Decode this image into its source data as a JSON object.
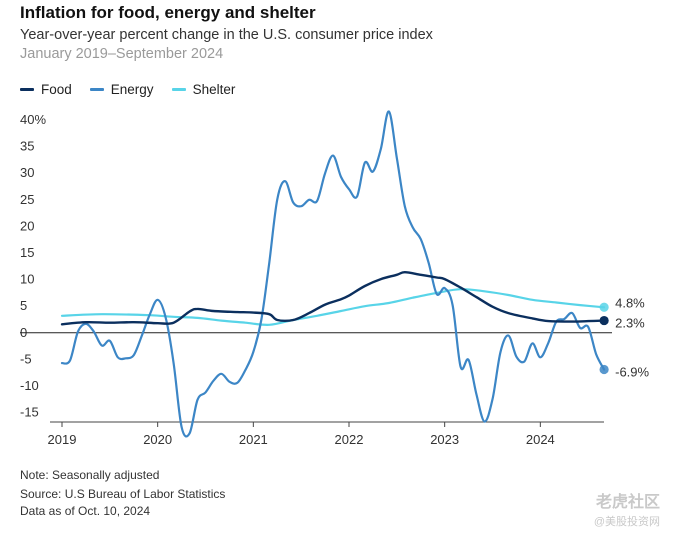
{
  "header": {
    "title": "Inflation for food, energy and shelter",
    "subtitle": "Year-over-year percent change in the U.S. consumer price index",
    "date_range": "January 2019–September 2024"
  },
  "legend": [
    {
      "label": "Food",
      "color": "#0b2f5e"
    },
    {
      "label": "Energy",
      "color": "#3c86c6"
    },
    {
      "label": "Shelter",
      "color": "#58d4e8"
    }
  ],
  "footer": {
    "note": "Note: Seasonally adjusted",
    "source": "Source: U.S Bureau of Labor Statistics",
    "data_as_of": "Data as of Oct. 10, 2024"
  },
  "watermark": {
    "line1": "老虎社区",
    "line2": "@美股投资网"
  },
  "chart_data": {
    "type": "line",
    "title": "Inflation for food, energy and shelter",
    "ylim": [
      -17,
      42
    ],
    "y_ticks": [
      {
        "value": 40,
        "label": "40%"
      },
      {
        "value": 35,
        "label": "35"
      },
      {
        "value": 30,
        "label": "30"
      },
      {
        "value": 25,
        "label": "25"
      },
      {
        "value": 20,
        "label": "20"
      },
      {
        "value": 15,
        "label": "15"
      },
      {
        "value": 10,
        "label": "10"
      },
      {
        "value": 5,
        "label": "5"
      },
      {
        "value": 0,
        "label": "0"
      },
      {
        "value": -5,
        "label": "-5"
      },
      {
        "value": -10,
        "label": "-10"
      },
      {
        "value": -15,
        "label": "-15"
      }
    ],
    "x_ticks": [
      "2019",
      "2020",
      "2021",
      "2022",
      "2023",
      "2024"
    ],
    "grid": false,
    "legend_position": "top-left",
    "series": [
      {
        "name": "Food",
        "color": "#0b2f5e",
        "end_label": "2.3%",
        "points": [
          [
            "2019-01",
            1.6
          ],
          [
            "2019-04",
            2.0
          ],
          [
            "2019-07",
            1.9
          ],
          [
            "2019-10",
            2.0
          ],
          [
            "2020-01",
            1.8
          ],
          [
            "2020-03",
            1.9
          ],
          [
            "2020-05",
            4.0
          ],
          [
            "2020-06",
            4.5
          ],
          [
            "2020-08",
            4.1
          ],
          [
            "2020-11",
            3.9
          ],
          [
            "2021-01",
            3.8
          ],
          [
            "2021-03",
            3.5
          ],
          [
            "2021-04",
            2.4
          ],
          [
            "2021-06",
            2.4
          ],
          [
            "2021-08",
            3.7
          ],
          [
            "2021-10",
            5.3
          ],
          [
            "2021-12",
            6.3
          ],
          [
            "2022-01",
            7.0
          ],
          [
            "2022-03",
            8.8
          ],
          [
            "2022-05",
            10.1
          ],
          [
            "2022-07",
            10.9
          ],
          [
            "2022-08",
            11.4
          ],
          [
            "2022-10",
            10.9
          ],
          [
            "2022-12",
            10.4
          ],
          [
            "2023-01",
            10.1
          ],
          [
            "2023-03",
            8.5
          ],
          [
            "2023-05",
            6.7
          ],
          [
            "2023-07",
            4.9
          ],
          [
            "2023-09",
            3.7
          ],
          [
            "2023-12",
            2.7
          ],
          [
            "2024-02",
            2.2
          ],
          [
            "2024-05",
            2.1
          ],
          [
            "2024-07",
            2.2
          ],
          [
            "2024-09",
            2.3
          ]
        ]
      },
      {
        "name": "Energy",
        "color": "#3c86c6",
        "end_label": "-6.9%",
        "points": [
          [
            "2019-01",
            -5.7
          ],
          [
            "2019-02",
            -5.2
          ],
          [
            "2019-03",
            0.2
          ],
          [
            "2019-04",
            1.7
          ],
          [
            "2019-05",
            0.2
          ],
          [
            "2019-06",
            -2.4
          ],
          [
            "2019-07",
            -1.5
          ],
          [
            "2019-08",
            -4.6
          ],
          [
            "2019-09",
            -4.8
          ],
          [
            "2019-10",
            -4.2
          ],
          [
            "2019-11",
            -0.6
          ],
          [
            "2019-12",
            3.4
          ],
          [
            "2020-01",
            6.2
          ],
          [
            "2020-02",
            2.9
          ],
          [
            "2020-03",
            -5.7
          ],
          [
            "2020-04",
            -17.7
          ],
          [
            "2020-05",
            -18.9
          ],
          [
            "2020-06",
            -12.6
          ],
          [
            "2020-07",
            -11.2
          ],
          [
            "2020-08",
            -9.0
          ],
          [
            "2020-09",
            -7.7
          ],
          [
            "2020-10",
            -9.2
          ],
          [
            "2020-11",
            -9.4
          ],
          [
            "2020-12",
            -7.0
          ],
          [
            "2021-01",
            -3.6
          ],
          [
            "2021-02",
            2.4
          ],
          [
            "2021-03",
            13.2
          ],
          [
            "2021-04",
            25.1
          ],
          [
            "2021-05",
            28.5
          ],
          [
            "2021-06",
            24.5
          ],
          [
            "2021-07",
            23.8
          ],
          [
            "2021-08",
            25.0
          ],
          [
            "2021-09",
            24.8
          ],
          [
            "2021-10",
            30.0
          ],
          [
            "2021-11",
            33.3
          ],
          [
            "2021-12",
            29.3
          ],
          [
            "2022-01",
            27.0
          ],
          [
            "2022-02",
            25.6
          ],
          [
            "2022-03",
            32.0
          ],
          [
            "2022-04",
            30.3
          ],
          [
            "2022-05",
            34.6
          ],
          [
            "2022-06",
            41.6
          ],
          [
            "2022-07",
            32.9
          ],
          [
            "2022-08",
            23.8
          ],
          [
            "2022-09",
            19.8
          ],
          [
            "2022-10",
            17.6
          ],
          [
            "2022-11",
            13.1
          ],
          [
            "2022-12",
            7.3
          ],
          [
            "2023-01",
            8.4
          ],
          [
            "2023-02",
            5.2
          ],
          [
            "2023-03",
            -6.4
          ],
          [
            "2023-04",
            -5.1
          ],
          [
            "2023-05",
            -11.7
          ],
          [
            "2023-06",
            -16.7
          ],
          [
            "2023-07",
            -12.5
          ],
          [
            "2023-08",
            -3.6
          ],
          [
            "2023-09",
            -0.5
          ],
          [
            "2023-10",
            -4.5
          ],
          [
            "2023-11",
            -5.4
          ],
          [
            "2023-12",
            -2.0
          ],
          [
            "2024-01",
            -4.6
          ],
          [
            "2024-02",
            -1.9
          ],
          [
            "2024-03",
            2.1
          ],
          [
            "2024-04",
            2.6
          ],
          [
            "2024-05",
            3.7
          ],
          [
            "2024-06",
            0.9
          ],
          [
            "2024-07",
            1.1
          ],
          [
            "2024-08",
            -4.0
          ],
          [
            "2024-09",
            -6.9
          ]
        ]
      },
      {
        "name": "Shelter",
        "color": "#58d4e8",
        "end_label": "4.8%",
        "points": [
          [
            "2019-01",
            3.2
          ],
          [
            "2019-06",
            3.5
          ],
          [
            "2019-12",
            3.3
          ],
          [
            "2020-03",
            3.0
          ],
          [
            "2020-06",
            2.8
          ],
          [
            "2020-09",
            2.3
          ],
          [
            "2020-12",
            1.9
          ],
          [
            "2021-03",
            1.5
          ],
          [
            "2021-06",
            2.4
          ],
          [
            "2021-09",
            3.2
          ],
          [
            "2021-12",
            4.1
          ],
          [
            "2022-03",
            5.0
          ],
          [
            "2022-06",
            5.6
          ],
          [
            "2022-09",
            6.6
          ],
          [
            "2022-12",
            7.5
          ],
          [
            "2023-03",
            8.2
          ],
          [
            "2023-06",
            7.8
          ],
          [
            "2023-09",
            7.1
          ],
          [
            "2023-12",
            6.2
          ],
          [
            "2024-03",
            5.7
          ],
          [
            "2024-06",
            5.2
          ],
          [
            "2024-09",
            4.8
          ]
        ]
      }
    ]
  }
}
